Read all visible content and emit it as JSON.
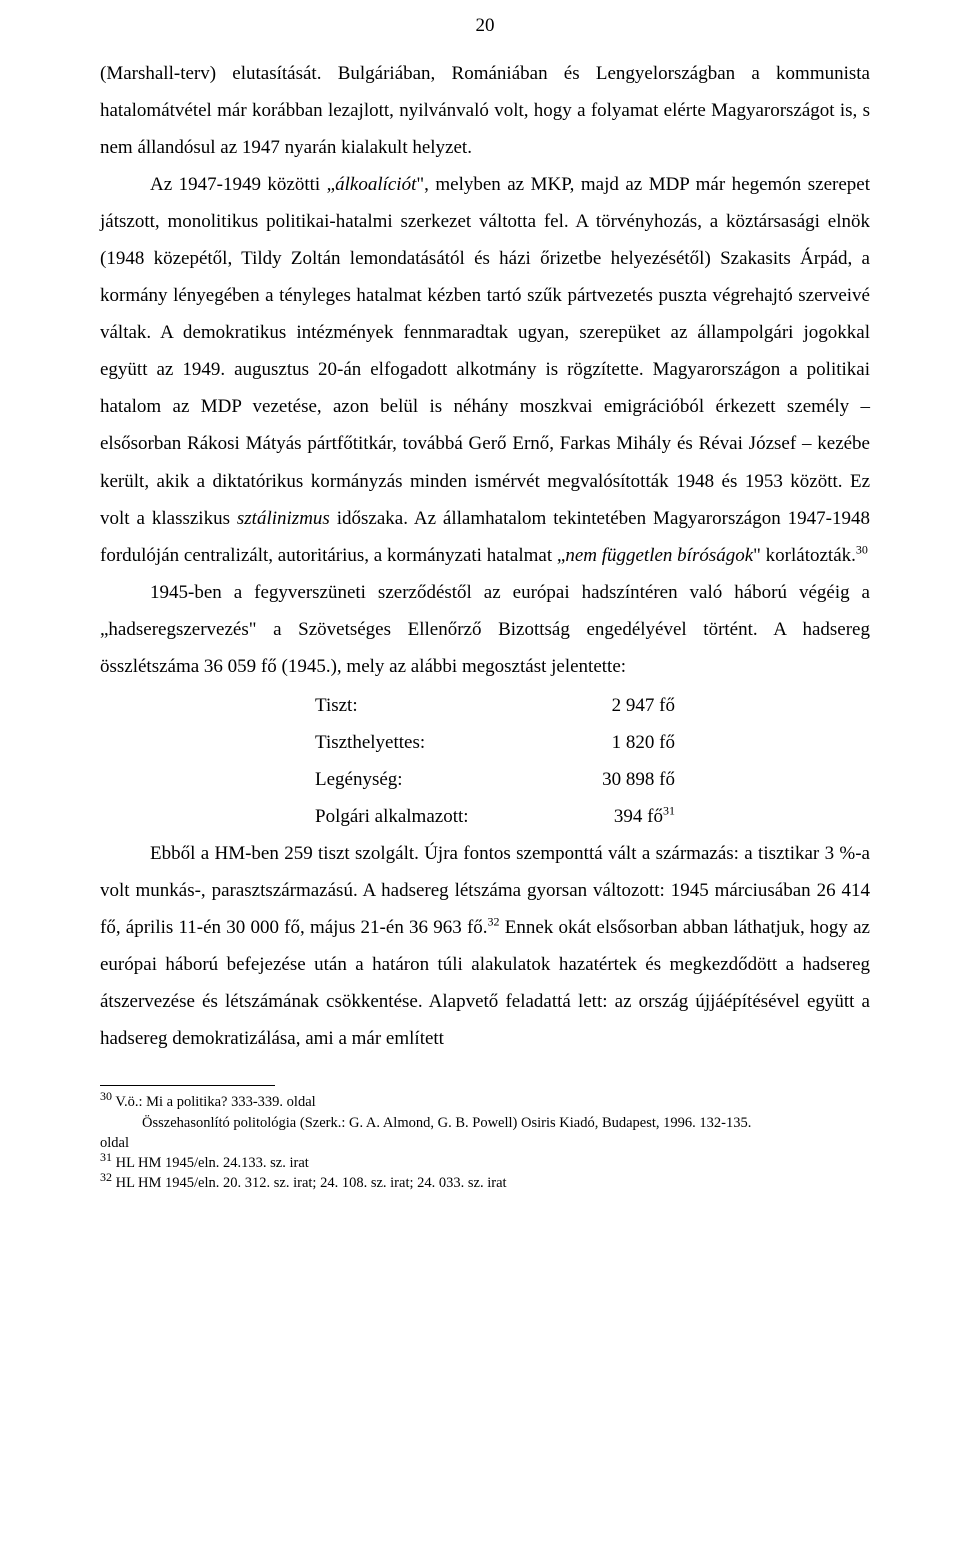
{
  "page_number": "20",
  "paragraphs": {
    "p1": {
      "seg1": "(Marshall-terv) elutasítását. Bulgáriában, Romániában és Lengyelországban a kommunista hatalomátvétel már korábban lezajlott, nyilvánvaló volt, hogy a folyamat elérte Magyarországot is, s nem állandósul az 1947 nyarán kialakult helyzet.",
      "seg2_prefix": "Az 1947-1949 közötti „",
      "seg2_italic": "álkoalíciót",
      "seg2_suffix": "\", melyben az MKP, majd az MDP már hegemón szerepet játszott, monolitikus politikai-hatalmi szerkezet váltotta fel. A törvényhozás, a köztársasági elnök (1948 közepétől, Tildy Zoltán lemondatásától és házi őrizetbe helyezésétől) Szakasits Árpád, a kormány lényegében a tényleges hatalmat kézben tartó szűk pártvezetés puszta végrehajtó szerveivé váltak. A demokratikus intézmények fennmaradtak ugyan, szerepüket az állampolgári jogokkal együtt az 1949. augusztus 20-án elfogadott alkotmány is rögzítette. Magyarországon a politikai hatalom az MDP vezetése, azon belül is néhány moszkvai emigrációból érkezett személy – elsősorban Rákosi Mátyás pártfőtitkár, továbbá Gerő Ernő, Farkas Mihály és Révai József – kezébe került, akik a diktatórikus kormányzás minden ismérvét megvalósították 1948 és 1953 között. Ez volt a klasszikus ",
      "seg3_italic": "sztálinizmus",
      "seg3_rest": " időszaka. Az államhatalom tekintetében Magyarországon 1947-1948 fordulóján centralizált, autoritárius, a kormányzati hatalmat „",
      "seg4_italic": "nem független bíróságok",
      "seg4_suffix": "\" korlátozták.",
      "fn30": "30"
    },
    "p2": {
      "text": "1945-ben a fegyverszüneti szerződéstől az európai hadszíntéren való háború végéig a „hadseregszervezés\" a Szövetséges Ellenőrző Bizottság engedélyével történt. A hadsereg összlétszáma 36 059 fő (1945.), mely az alábbi megosztást jelentette:"
    },
    "p3": {
      "seg1": "Ebből a HM-ben 259 tiszt szolgált. Újra fontos szemponttá vált a származás: a tisztikar 3 %-a volt munkás-, parasztszármazású. A hadsereg létszáma gyorsan változott: 1945 márciusában 26 414 fő, április 11-én 30 000 fő, május 21-én 36 963 fő.",
      "fn32": "32",
      "seg2": " Ennek okát elsősorban abban láthatjuk, hogy az európai háború befejezése után a határon túli alakulatok hazatértek és megkezdődött a hadsereg átszervezése és létszámának csökkentése. Alapvető feladattá lett: az ország újjáépítésével együtt a hadsereg demokratizálása, ami a már említett"
    }
  },
  "data_rows": [
    {
      "label": "Tiszt:",
      "value": "2 947 fő",
      "sup": ""
    },
    {
      "label": "Tiszthelyettes:",
      "value": "1 820 fő",
      "sup": ""
    },
    {
      "label": "Legénység:",
      "value": "30 898 fő",
      "sup": ""
    },
    {
      "label": "Polgári alkalmazott:",
      "value": "394 fő",
      "sup": "31"
    }
  ],
  "footnotes": {
    "fn30a": "30",
    "fn30a_text": "  V.ö.: Mi a politika? 333-339. oldal",
    "fn30b_text": "Összehasonlító politológia (Szerk.: G. A. Almond, G. B. Powell) Osiris Kiadó, Budapest, 1996. 132-135.",
    "fn30c_text": "oldal",
    "fn31": "31",
    "fn31_text": " HL HM 1945/eln. 24.133. sz. irat",
    "fn32": "32",
    "fn32_text": " HL HM 1945/eln. 20. 312. sz. irat; 24. 108. sz. irat; 24. 033. sz. irat"
  }
}
